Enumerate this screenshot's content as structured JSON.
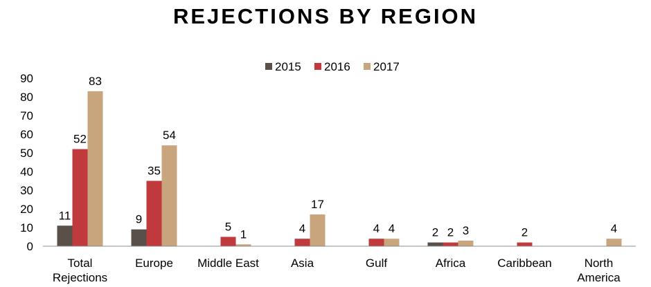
{
  "chart_data": {
    "type": "bar",
    "title": "REJECTIONS BY REGION",
    "categories": [
      [
        "Total",
        "Rejections"
      ],
      [
        "Europe"
      ],
      [
        "Middle East"
      ],
      [
        "Asia"
      ],
      [
        "Gulf"
      ],
      [
        "Africa"
      ],
      [
        "Caribbean"
      ],
      [
        "North",
        "America"
      ]
    ],
    "series": [
      {
        "name": "2015",
        "color": "#595049",
        "values": [
          11,
          9,
          0,
          0,
          0,
          2,
          0,
          0
        ],
        "labels": [
          "11",
          "9",
          "",
          "",
          "",
          "2",
          "",
          ""
        ]
      },
      {
        "name": "2016",
        "color": "#c0393d",
        "values": [
          52,
          35,
          5,
          4,
          4,
          2,
          2,
          0
        ],
        "labels": [
          "52",
          "35",
          "5",
          "4",
          "4",
          "2",
          "2",
          ""
        ]
      },
      {
        "name": "2017",
        "color": "#c9a57e",
        "values": [
          83,
          54,
          1,
          17,
          4,
          3,
          0,
          4
        ],
        "labels": [
          "83",
          "54",
          "1",
          "17",
          "4",
          "3",
          "",
          "4"
        ]
      }
    ],
    "ylim": [
      0,
      90
    ],
    "yticks": [
      "0",
      "10",
      "20",
      "30",
      "40",
      "50",
      "60",
      "70",
      "80",
      "90"
    ],
    "grid": false,
    "legend_position": "top-center",
    "xlabel": "",
    "ylabel": ""
  }
}
